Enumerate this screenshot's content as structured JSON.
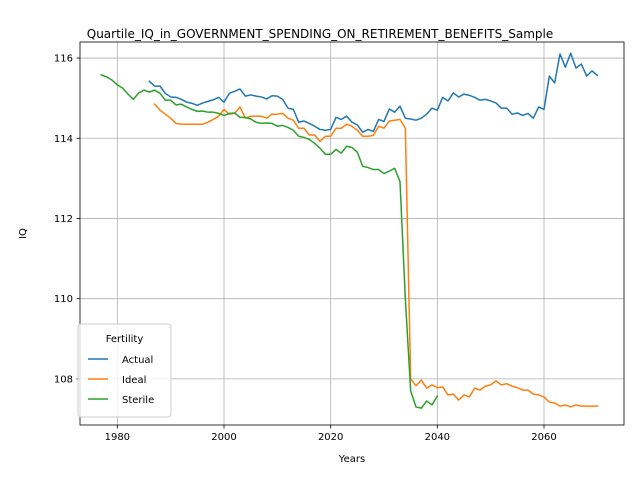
{
  "chart_data": {
    "type": "line",
    "title": "Quartile_IQ_in_GOVERNMENT_SPENDING_ON_RETIREMENT_BENEFITS_Sample",
    "xlabel": "Years",
    "ylabel": "IQ",
    "xlim": [
      1973,
      2075
    ],
    "ylim": [
      106.85,
      116.4
    ],
    "x_ticks": [
      1980,
      2000,
      2020,
      2040,
      2060
    ],
    "y_ticks": [
      108,
      110,
      112,
      114,
      116
    ],
    "grid": true,
    "legend": {
      "title": "Fertility",
      "placement": "lower-left"
    },
    "series": [
      {
        "name": "Actual",
        "color": "#1f77b4",
        "x": [
          1986,
          1987,
          1988,
          1989,
          1990,
          1991,
          1992,
          1993,
          1994,
          1995,
          1996,
          1997,
          1998,
          1999,
          2000,
          2001,
          2002,
          2003,
          2004,
          2005,
          2006,
          2007,
          2008,
          2009,
          2010,
          2011,
          2012,
          2013,
          2014,
          2015,
          2016,
          2017,
          2018,
          2019,
          2020,
          2021,
          2022,
          2023,
          2024,
          2025,
          2026,
          2027,
          2028,
          2029,
          2030,
          2031,
          2032,
          2033,
          2034,
          2035,
          2036,
          2037,
          2038,
          2039,
          2040,
          2041,
          2042,
          2043,
          2044,
          2045,
          2046,
          2047,
          2048,
          2049,
          2050,
          2051,
          2052,
          2053,
          2054,
          2055,
          2056,
          2057,
          2058,
          2059,
          2060,
          2061,
          2062,
          2063,
          2064,
          2065,
          2066,
          2067,
          2068,
          2069,
          2070
        ],
        "values": [
          115.42,
          115.3,
          115.3,
          115.12,
          115.03,
          115.02,
          114.97,
          114.9,
          114.87,
          114.82,
          114.88,
          114.92,
          114.96,
          115.02,
          114.9,
          115.12,
          115.17,
          115.23,
          115.05,
          115.08,
          115.05,
          115.03,
          114.98,
          115.06,
          115.05,
          114.97,
          114.75,
          114.72,
          114.4,
          114.43,
          114.37,
          114.3,
          114.22,
          114.2,
          114.22,
          114.52,
          114.47,
          114.55,
          114.4,
          114.33,
          114.15,
          114.22,
          114.17,
          114.47,
          114.42,
          114.73,
          114.65,
          114.8,
          114.5,
          114.48,
          114.45,
          114.5,
          114.6,
          114.75,
          114.7,
          115.02,
          114.93,
          115.13,
          115.03,
          115.1,
          115.07,
          115.02,
          114.95,
          114.97,
          114.93,
          114.88,
          114.75,
          114.75,
          114.6,
          114.63,
          114.57,
          114.62,
          114.5,
          114.78,
          114.72,
          115.55,
          115.38,
          116.1,
          115.77,
          116.12,
          115.75,
          115.85,
          115.55,
          115.68,
          115.57
        ]
      },
      {
        "name": "Ideal",
        "color": "#ff7f0e",
        "x": [
          1987,
          1988,
          1989,
          1990,
          1991,
          1992,
          1993,
          1994,
          1995,
          1996,
          1997,
          1998,
          1999,
          2000,
          2001,
          2002,
          2003,
          2004,
          2005,
          2006,
          2007,
          2008,
          2009,
          2010,
          2011,
          2012,
          2013,
          2014,
          2015,
          2016,
          2017,
          2018,
          2019,
          2020,
          2021,
          2022,
          2023,
          2024,
          2025,
          2026,
          2027,
          2028,
          2029,
          2030,
          2031,
          2032,
          2033,
          2034,
          2035,
          2036,
          2037,
          2038,
          2039,
          2040,
          2041,
          2042,
          2043,
          2044,
          2045,
          2046,
          2047,
          2048,
          2049,
          2050,
          2051,
          2052,
          2053,
          2054,
          2055,
          2056,
          2057,
          2058,
          2059,
          2060,
          2061,
          2062,
          2063,
          2064,
          2065,
          2066,
          2067,
          2068,
          2069,
          2070
        ],
        "values": [
          114.85,
          114.7,
          114.6,
          114.5,
          114.37,
          114.35,
          114.35,
          114.35,
          114.35,
          114.35,
          114.4,
          114.47,
          114.55,
          114.72,
          114.6,
          114.62,
          114.78,
          114.5,
          114.55,
          114.55,
          114.55,
          114.5,
          114.6,
          114.6,
          114.62,
          114.5,
          114.45,
          114.25,
          114.25,
          114.08,
          114.08,
          113.92,
          114.05,
          114.05,
          114.25,
          114.25,
          114.35,
          114.3,
          114.2,
          114.05,
          114.05,
          114.07,
          114.3,
          114.25,
          114.43,
          114.45,
          114.47,
          114.25,
          108.0,
          107.83,
          107.97,
          107.77,
          107.85,
          107.78,
          107.8,
          107.6,
          107.62,
          107.47,
          107.6,
          107.55,
          107.77,
          107.72,
          107.82,
          107.85,
          107.95,
          107.85,
          107.88,
          107.82,
          107.78,
          107.72,
          107.72,
          107.62,
          107.6,
          107.55,
          107.42,
          107.4,
          107.32,
          107.35,
          107.3,
          107.35,
          107.32,
          107.32,
          107.32,
          107.32
        ]
      },
      {
        "name": "Sterile",
        "color": "#2ca02c",
        "x": [
          1977,
          1978,
          1979,
          1980,
          1981,
          1982,
          1983,
          1984,
          1985,
          1986,
          1987,
          1988,
          1989,
          1990,
          1991,
          1992,
          1993,
          1994,
          1995,
          1996,
          1997,
          1998,
          1999,
          2000,
          2001,
          2002,
          2003,
          2004,
          2005,
          2006,
          2007,
          2008,
          2009,
          2010,
          2011,
          2012,
          2013,
          2014,
          2015,
          2016,
          2017,
          2018,
          2019,
          2020,
          2021,
          2022,
          2023,
          2024,
          2025,
          2026,
          2027,
          2028,
          2029,
          2030,
          2031,
          2032,
          2033,
          2034,
          2035,
          2036,
          2037,
          2038,
          2039,
          2040
        ],
        "values": [
          115.58,
          115.53,
          115.45,
          115.33,
          115.25,
          115.1,
          114.97,
          115.13,
          115.2,
          115.15,
          115.2,
          115.12,
          114.95,
          114.95,
          114.83,
          114.85,
          114.78,
          114.72,
          114.67,
          114.68,
          114.65,
          114.65,
          114.62,
          114.57,
          114.62,
          114.63,
          114.52,
          114.52,
          114.48,
          114.4,
          114.37,
          114.38,
          114.37,
          114.3,
          114.32,
          114.27,
          114.2,
          114.05,
          114.02,
          113.97,
          113.87,
          113.75,
          113.6,
          113.6,
          113.72,
          113.63,
          113.8,
          113.77,
          113.65,
          113.3,
          113.27,
          113.22,
          113.22,
          113.12,
          113.18,
          113.25,
          112.92,
          110.0,
          107.7,
          107.3,
          107.27,
          107.45,
          107.35,
          107.57
        ]
      }
    ]
  }
}
